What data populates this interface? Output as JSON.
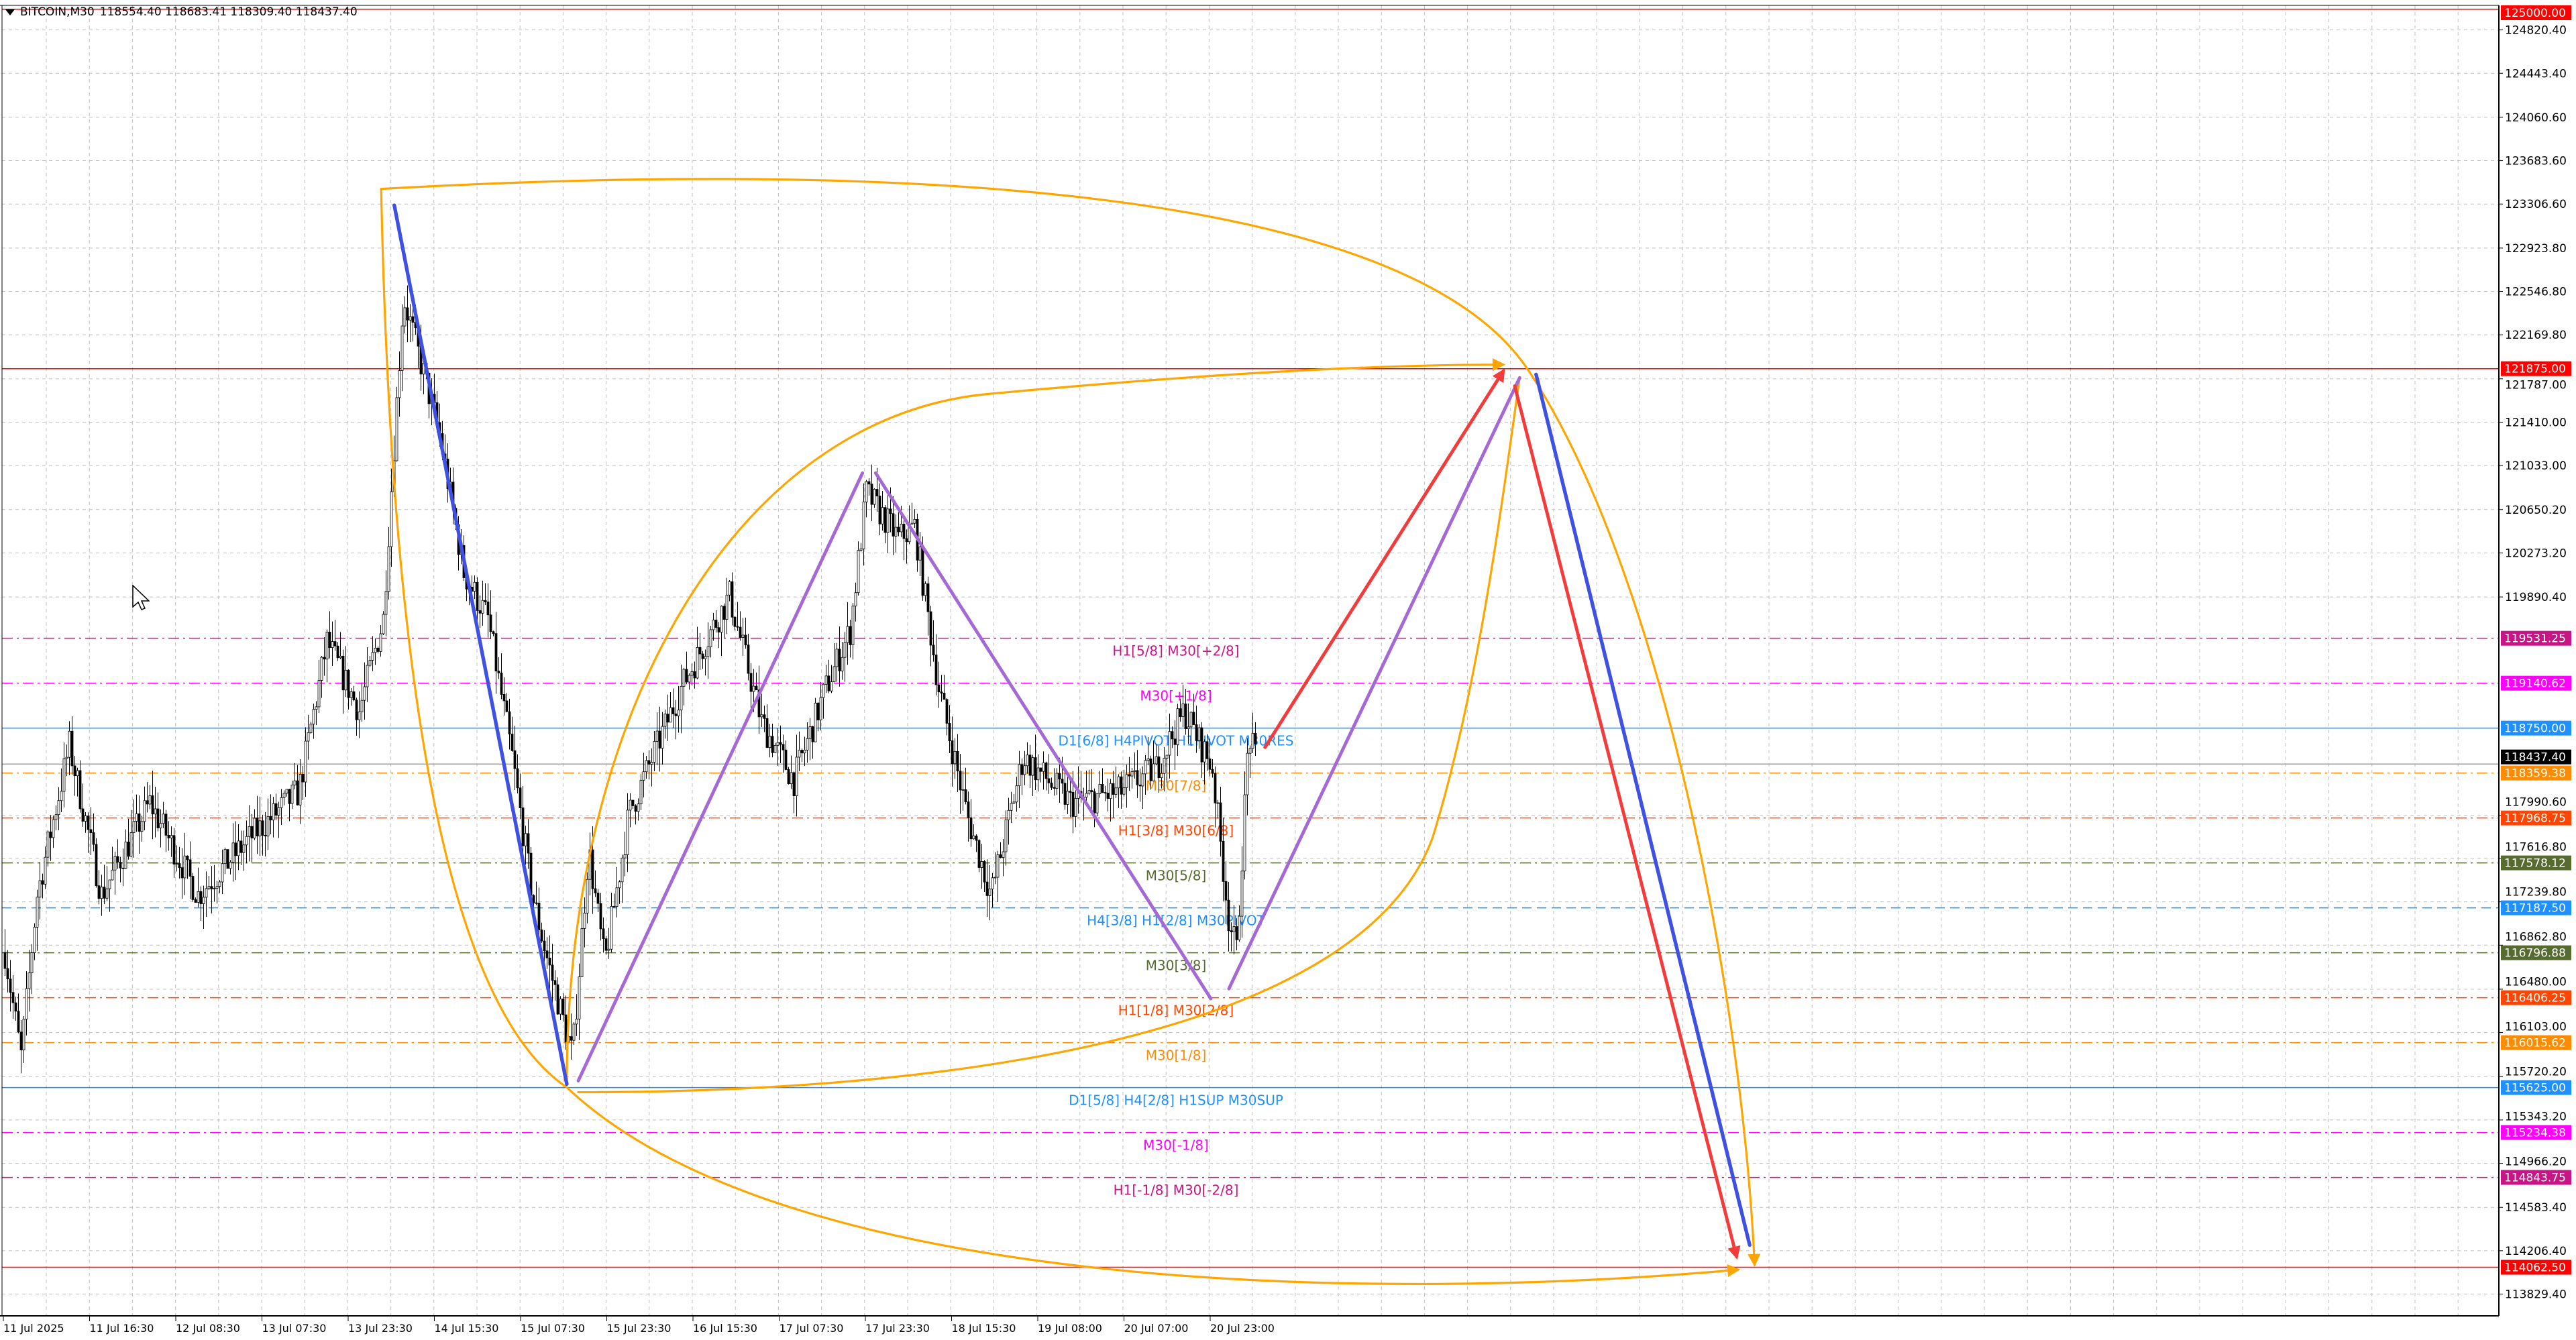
{
  "header": {
    "symbol": "BITCOIN,M30",
    "ohlc": "118554.40 118683.41 118309.40 118437.40"
  },
  "colors": {
    "background": "#ffffff",
    "grid": "#c0c0c0",
    "bull_body": "#ffffff",
    "bear_body": "#000000",
    "orange_curve": "#ffa500",
    "blue_line": "#3f51e0",
    "purple_line": "#a569d6",
    "red_arrow": "#f23c3c"
  },
  "price_axis": {
    "ticks": [
      "124820.40",
      "124443.40",
      "124060.60",
      "123683.60",
      "123306.60",
      "122923.80",
      "122546.80",
      "122169.80",
      "121787.00",
      "121410.00",
      "121033.00",
      "120650.20",
      "120273.20",
      "119890.40",
      "117990.60",
      "117616.80",
      "117239.80",
      "116862.80",
      "116480.00",
      "116103.00",
      "115720.20",
      "115343.20",
      "114966.20",
      "114583.40",
      "114206.40",
      "113829.40"
    ]
  },
  "time_axis": {
    "labels": [
      "11 Jul 2025",
      "11 Jul 16:30",
      "12 Jul 08:30",
      "13 Jul 07:30",
      "13 Jul 23:30",
      "14 Jul 15:30",
      "15 Jul 07:30",
      "15 Jul 23:30",
      "16 Jul 15:30",
      "17 Jul 07:30",
      "17 Jul 23:30",
      "18 Jul 15:30",
      "19 Jul 08:00",
      "20 Jul 07:00",
      "20 Jul 23:00"
    ]
  },
  "current_price": {
    "price": "118437.40",
    "color": "#000000"
  },
  "levels": [
    {
      "price": "125000.00",
      "color": "#ff0000",
      "style": "solid",
      "label": ""
    },
    {
      "price": "121875.00",
      "color": "#ff0000",
      "style": "solid",
      "label": ""
    },
    {
      "price": "119531.25",
      "color": "#c71585",
      "style": "dashdot",
      "label": "H1[5/8] M30[+2/8]"
    },
    {
      "price": "119140.62",
      "color": "#ff00ff",
      "style": "dashdot",
      "label": "M30[+1/8]"
    },
    {
      "price": "118750.00",
      "color": "#1e90ff",
      "style": "solid",
      "label": "D1[6/8] H4PIVOT H1PIVOT M30RES"
    },
    {
      "price": "118359.38",
      "color": "#ff8c00",
      "style": "dashdot",
      "label": "M30[7/8]"
    },
    {
      "price": "117968.75",
      "color": "#ff4500",
      "style": "dashdot",
      "label": "H1[3/8] M30[6/8]"
    },
    {
      "price": "117578.12",
      "color": "#556b2f",
      "style": "dashdot",
      "label": "M30[5/8]"
    },
    {
      "price": "117187.50",
      "color": "#1e90ff",
      "style": "dashed",
      "label": "H4[3/8] H1[2/8] M30PIVOT"
    },
    {
      "price": "116796.88",
      "color": "#556b2f",
      "style": "dashdot",
      "label": "M30[3/8]"
    },
    {
      "price": "116406.25",
      "color": "#ff4500",
      "style": "dashdot",
      "label": "H1[1/8] M30[2/8]"
    },
    {
      "price": "116015.62",
      "color": "#ff8c00",
      "style": "dashdot",
      "label": "M30[1/8]"
    },
    {
      "price": "115625.00",
      "color": "#1e90ff",
      "style": "solid",
      "label": "D1[5/8] H4[2/8] H1SUP M30SUP"
    },
    {
      "price": "115234.38",
      "color": "#ff00ff",
      "style": "dashdot",
      "label": "M30[-1/8]"
    },
    {
      "price": "114843.75",
      "color": "#c71585",
      "style": "dashdot",
      "label": "H1[-1/8] M30[-2/8]"
    },
    {
      "price": "114062.50",
      "color": "#ff0000",
      "style": "solid",
      "label": ""
    }
  ],
  "price_path": [
    [
      0,
      116800
    ],
    [
      4,
      115900
    ],
    [
      8,
      117300
    ],
    [
      16,
      118600
    ],
    [
      24,
      117300
    ],
    [
      36,
      118100
    ],
    [
      48,
      117300
    ],
    [
      61,
      117800
    ],
    [
      73,
      118200
    ],
    [
      80,
      119500
    ],
    [
      88,
      118900
    ],
    [
      94,
      119700
    ],
    [
      97,
      121400
    ],
    [
      99,
      122500
    ],
    [
      102,
      122100
    ],
    [
      108,
      121300
    ],
    [
      114,
      120100
    ],
    [
      120,
      119700
    ],
    [
      126,
      118500
    ],
    [
      131,
      117300
    ],
    [
      135,
      116700
    ],
    [
      141,
      115900
    ],
    [
      145,
      117700
    ],
    [
      149,
      116700
    ],
    [
      155,
      118000
    ],
    [
      168,
      119100
    ],
    [
      180,
      119900
    ],
    [
      188,
      118800
    ],
    [
      196,
      118300
    ],
    [
      204,
      119100
    ],
    [
      210,
      119600
    ],
    [
      214,
      120800
    ],
    [
      222,
      120400
    ],
    [
      226,
      120500
    ],
    [
      232,
      119100
    ],
    [
      239,
      118000
    ],
    [
      245,
      117300
    ],
    [
      253,
      118500
    ],
    [
      265,
      118100
    ],
    [
      277,
      118200
    ],
    [
      286,
      118400
    ],
    [
      293,
      118900
    ],
    [
      300,
      118400
    ],
    [
      304,
      117100
    ],
    [
      306,
      116800
    ],
    [
      309,
      118700
    ],
    [
      311,
      118440
    ]
  ]
}
